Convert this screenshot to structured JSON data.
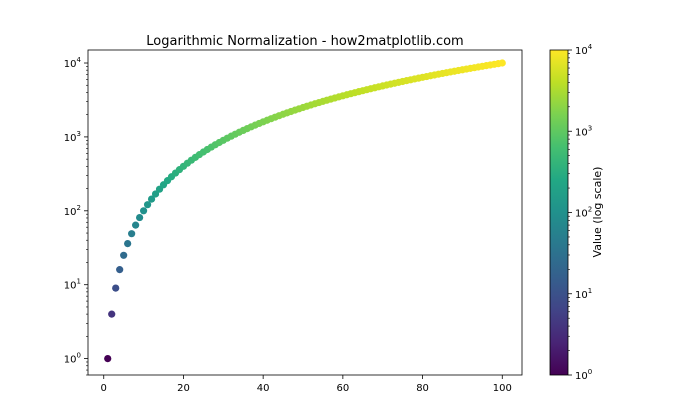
{
  "chart_data": {
    "type": "scatter",
    "title": "Logarithmic Normalization - how2matplotlib.com",
    "xlabel": "",
    "ylabel": "",
    "x": {
      "start": 1,
      "end": 100,
      "step": 1
    },
    "y_rule": "y = x^2",
    "xlim": [
      -3.95,
      104.95
    ],
    "ylim": [
      0.6,
      15000
    ],
    "yscale": "log",
    "x_ticks": [
      0,
      20,
      40,
      60,
      80,
      100
    ],
    "y_ticks": [
      {
        "value": 1,
        "base": "10",
        "exp": "0"
      },
      {
        "value": 10,
        "base": "10",
        "exp": "1"
      },
      {
        "value": 100,
        "base": "10",
        "exp": "2"
      },
      {
        "value": 1000,
        "base": "10",
        "exp": "3"
      },
      {
        "value": 10000,
        "base": "10",
        "exp": "4"
      }
    ],
    "grid": false,
    "colormap": "viridis",
    "colorbar": {
      "label": "Value (log scale)",
      "min": 1,
      "max": 10000,
      "scale": "log",
      "ticks": [
        {
          "value": 1,
          "base": "10",
          "exp": "0"
        },
        {
          "value": 10,
          "base": "10",
          "exp": "1"
        },
        {
          "value": 100,
          "base": "10",
          "exp": "2"
        },
        {
          "value": 1000,
          "base": "10",
          "exp": "3"
        },
        {
          "value": 10000,
          "base": "10",
          "exp": "4"
        }
      ]
    }
  }
}
